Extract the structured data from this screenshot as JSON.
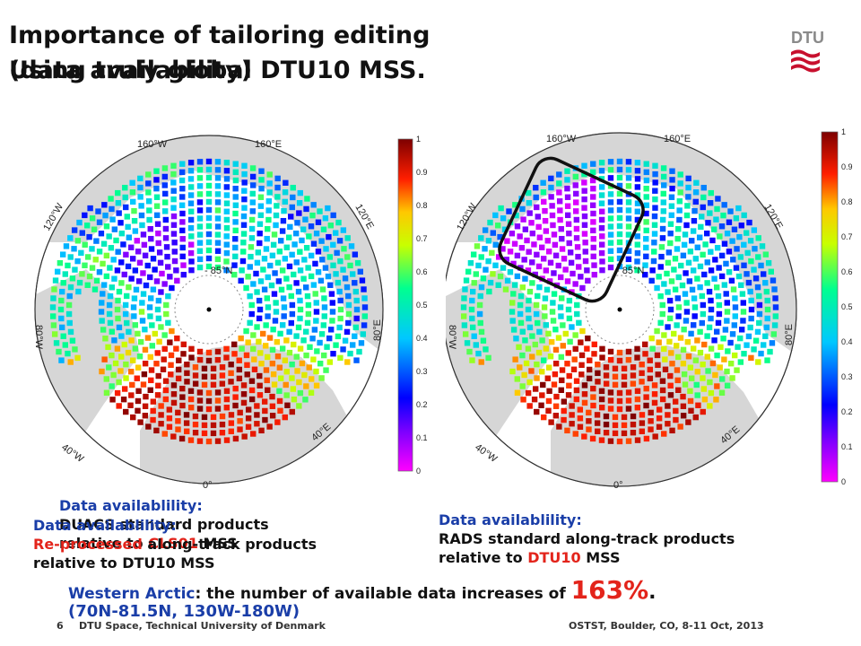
{
  "title": {
    "line1": "Importance of tailoring editing",
    "line2_a": "(data availability)",
    "line2_b": "Using truly global DTU10 MSS."
  },
  "logo": {
    "text": "DTU",
    "color": "#c8102e"
  },
  "left_map": {
    "labels": {
      "lon_160w": "160°W",
      "lon_160e": "160°E",
      "lon_120w": "120°W",
      "lon_120e": "120°E",
      "lon_80w": "80°W",
      "lon_80e": "80°E",
      "lon_40w": "40°W",
      "lon_40e": "40°E",
      "lon_0": "0°",
      "lat_85n": "- 85°N"
    },
    "colorbar": {
      "ticks": [
        "1",
        "0.9",
        "0.8",
        "0.7",
        "0.6",
        "0.5",
        "0.4",
        "0.3",
        "0.2",
        "0.1",
        "0"
      ]
    }
  },
  "right_map": {
    "labels": {
      "lon_160w": "160°W",
      "lon_160e": "160°E",
      "lon_120w": "120°W",
      "lon_120e": "120°E",
      "lon_80w": "80°W",
      "lon_80e": "80°E",
      "lon_40w": "40°W",
      "lon_40e": "40°E",
      "lon_0": "0°",
      "lat_85n": "- 85°N"
    },
    "colorbar": {
      "ticks": [
        "1",
        "0.9",
        "0.8",
        "0.7",
        "0.6",
        "0.5",
        "0.4",
        "0.3",
        "0.2",
        "0.1",
        "0"
      ]
    }
  },
  "captions": {
    "back": {
      "line1": "Data availablility:",
      "line2": "DUACS standard products",
      "line3_a": "relative to ",
      "line3_b": "CLS01",
      "line3_c": " MSS"
    },
    "front": {
      "line1": "Data availablility:",
      "line2_a": "Re-processed",
      "line2_b": " along-track products",
      "line3": "relative to DTU10 MSS"
    },
    "right": {
      "line1": "Data availablility:",
      "line2": "RADS standard along-track products",
      "line3_a": "relative to ",
      "line3_b": "DTU10",
      "line3_c": " MSS"
    }
  },
  "summary": {
    "label": "Western Arctic",
    "text": ": the number of available data increases of ",
    "pct": "163%",
    "end": ".",
    "region": "(70N-81.5N, 130W-180W)"
  },
  "footer": {
    "page": "6",
    "org": "DTU Space, Technical University of Denmark",
    "event": "OSTST, Boulder, CO, 8-11 Oct, 2013"
  }
}
